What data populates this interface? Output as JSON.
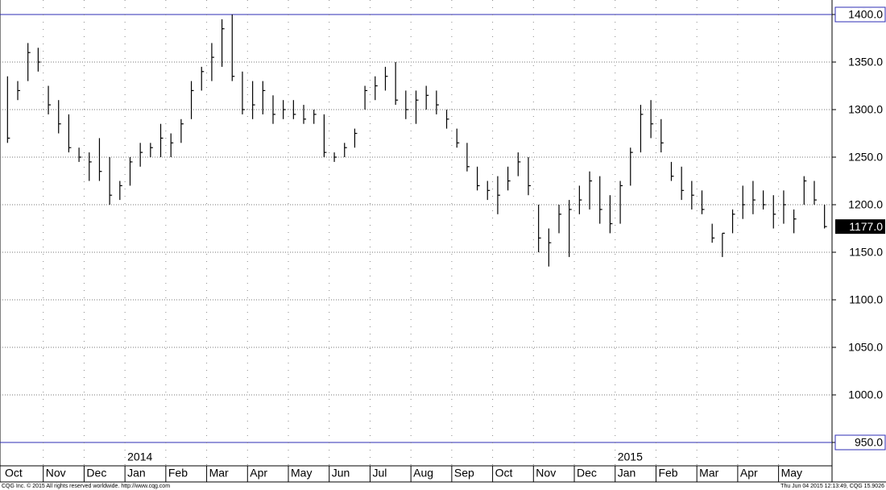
{
  "chart_data": {
    "type": "hlc",
    "color": "#000000",
    "limit_line_color": "#2d2db4",
    "grid": true,
    "ylim": [
      950,
      1400
    ],
    "yticks": [
      {
        "value": 950,
        "label": "950.0"
      },
      {
        "value": 1000,
        "label": "1000.0"
      },
      {
        "value": 1050,
        "label": "1050.0"
      },
      {
        "value": 1100,
        "label": "1100.0"
      },
      {
        "value": 1150,
        "label": "1150.0"
      },
      {
        "value": 1200,
        "label": "1200.0"
      },
      {
        "value": 1250,
        "label": "1250.0"
      },
      {
        "value": 1300,
        "label": "1300.0"
      },
      {
        "value": 1350,
        "label": "1350.0"
      },
      {
        "value": 1400,
        "label": "1400.0"
      }
    ],
    "year_labels": [
      "2014",
      "2015"
    ],
    "categories": [
      "Oct",
      null,
      null,
      null,
      "Nov",
      null,
      null,
      null,
      "Dec",
      null,
      null,
      null,
      "Jan",
      null,
      null,
      null,
      "Feb",
      null,
      null,
      null,
      "Mar",
      null,
      null,
      null,
      "Apr",
      null,
      null,
      null,
      "May",
      null,
      null,
      null,
      "Jun",
      null,
      null,
      null,
      "Jul",
      null,
      null,
      null,
      "Aug",
      null,
      null,
      null,
      "Sep",
      null,
      null,
      null,
      "Oct",
      null,
      null,
      null,
      "Nov",
      null,
      null,
      null,
      "Dec",
      null,
      null,
      null,
      "Jan",
      null,
      null,
      null,
      "Feb",
      null,
      null,
      null,
      "Mar",
      null,
      null,
      null,
      "Apr",
      null,
      null,
      null,
      "May",
      null,
      null,
      null,
      null
    ],
    "high": [
      1335,
      1330,
      1370,
      1365,
      1325,
      1310,
      1295,
      1260,
      1255,
      1270,
      1250,
      1225,
      1250,
      1265,
      1265,
      1285,
      1275,
      1290,
      1330,
      1345,
      1370,
      1395,
      1400,
      1340,
      1330,
      1330,
      1315,
      1310,
      1310,
      1305,
      1300,
      1295,
      1255,
      1265,
      1280,
      1325,
      1335,
      1345,
      1350,
      1320,
      1320,
      1325,
      1320,
      1300,
      1280,
      1265,
      1240,
      1225,
      1230,
      1240,
      1255,
      1250,
      1200,
      1175,
      1200,
      1205,
      1220,
      1235,
      1230,
      1210,
      1225,
      1260,
      1305,
      1310,
      1290,
      1245,
      1240,
      1225,
      1215,
      1180,
      1170,
      1195,
      1220,
      1225,
      1215,
      1210,
      1215,
      1195,
      1230,
      1225,
      1200
    ],
    "low": [
      1265,
      1310,
      1330,
      1340,
      1295,
      1275,
      1255,
      1245,
      1225,
      1225,
      1200,
      1205,
      1220,
      1240,
      1250,
      1250,
      1250,
      1265,
      1290,
      1320,
      1330,
      1345,
      1330,
      1295,
      1290,
      1295,
      1285,
      1290,
      1290,
      1285,
      1285,
      1250,
      1245,
      1250,
      1260,
      1300,
      1310,
      1320,
      1305,
      1290,
      1285,
      1300,
      1295,
      1280,
      1260,
      1235,
      1215,
      1205,
      1190,
      1215,
      1230,
      1210,
      1150,
      1135,
      1170,
      1145,
      1190,
      1195,
      1180,
      1170,
      1180,
      1220,
      1255,
      1270,
      1255,
      1225,
      1205,
      1195,
      1190,
      1160,
      1145,
      1170,
      1185,
      1190,
      1195,
      1175,
      1180,
      1170,
      1200,
      1200,
      1175
    ],
    "close": [
      1270,
      1320,
      1360,
      1350,
      1305,
      1285,
      1260,
      1250,
      1245,
      1235,
      1210,
      1220,
      1245,
      1255,
      1260,
      1270,
      1265,
      1285,
      1320,
      1340,
      1355,
      1385,
      1335,
      1300,
      1305,
      1320,
      1295,
      1300,
      1295,
      1290,
      1295,
      1255,
      1250,
      1260,
      1275,
      1320,
      1325,
      1335,
      1310,
      1300,
      1310,
      1315,
      1305,
      1290,
      1265,
      1240,
      1220,
      1215,
      1210,
      1225,
      1245,
      1220,
      1165,
      1160,
      1190,
      1195,
      1205,
      1225,
      1195,
      1180,
      1220,
      1255,
      1295,
      1285,
      1265,
      1230,
      1215,
      1210,
      1195,
      1165,
      1170,
      1190,
      1200,
      1205,
      1200,
      1190,
      1200,
      1185,
      1225,
      1205,
      1177
    ],
    "last_price": {
      "value": 1177,
      "label": "1177.0"
    },
    "footer_left": "CQG Inc. © 2015 All rights reserved worldwide. http://www.cqg.com",
    "footer_right": "Thu Jun 04 2015 12:13:49, CQG 15.9026"
  }
}
